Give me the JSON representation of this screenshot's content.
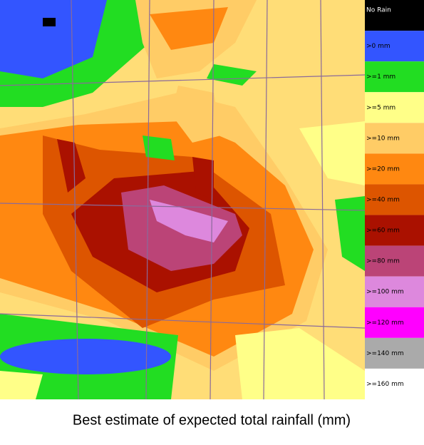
{
  "caption": "Best estimate of expected total rainfall (mm)",
  "legend": [
    {
      "label": "No Rain",
      "color": "#000000"
    },
    {
      "label": ">0 mm",
      "color": "#3355ff"
    },
    {
      "label": ">=1 mm",
      "color": "#22dd22"
    },
    {
      "label": ">=5 mm",
      "color": "#ffff88"
    },
    {
      "label": ">=10 mm",
      "color": "#ffcc66"
    },
    {
      "label": ">=20 mm",
      "color": "#ff8811"
    },
    {
      "label": ">=40 mm",
      "color": "#dd5500"
    },
    {
      "label": ">=60 mm",
      "color": "#aa1100"
    },
    {
      "label": ">=80 mm",
      "color": "#bb4477"
    },
    {
      "label": ">=100 mm",
      "color": "#dd88dd"
    },
    {
      "label": ">=120 mm",
      "color": "#ff00ff"
    },
    {
      "label": ">=140 mm",
      "color": "#aaaaaa"
    },
    {
      "label": ">=160 mm",
      "color": "#ffffff"
    }
  ]
}
